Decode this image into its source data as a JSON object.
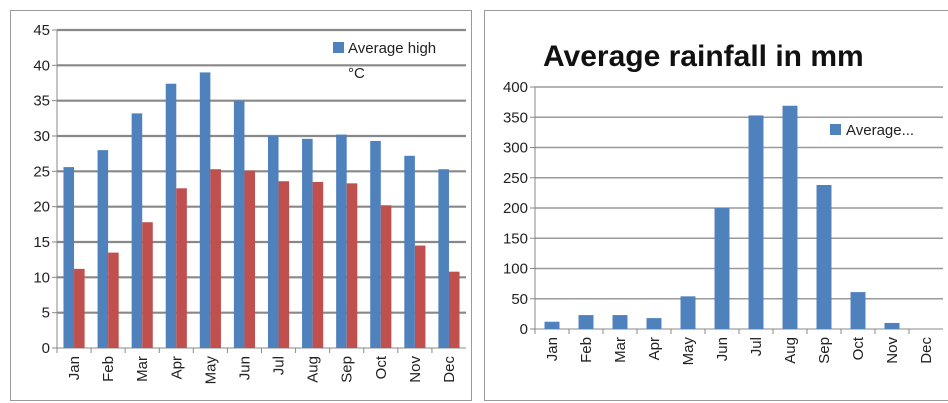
{
  "chart_data": [
    {
      "type": "bar",
      "title": "",
      "xlabel": "",
      "ylabel": "",
      "categories": [
        "Jan",
        "Feb",
        "Mar",
        "Apr",
        "May",
        "Jun",
        "Jul",
        "Aug",
        "Sep",
        "Oct",
        "Nov",
        "Dec"
      ],
      "series": [
        {
          "name": "Average high °C",
          "color": "#4f81bd",
          "values": [
            25.6,
            28.0,
            33.2,
            37.4,
            39.0,
            35.0,
            30.0,
            29.6,
            30.2,
            29.3,
            27.2,
            25.3
          ]
        },
        {
          "color": "#c0504d",
          "values": [
            11.2,
            13.5,
            17.8,
            22.6,
            25.3,
            25.1,
            23.6,
            23.5,
            23.3,
            20.2,
            14.5,
            10.8
          ]
        }
      ],
      "ylim": [
        0,
        45
      ],
      "yticks": [
        0,
        5,
        10,
        15,
        20,
        25,
        30,
        35,
        40,
        45
      ],
      "grid": true,
      "legend": {
        "position": "top-right",
        "line1": "Average high",
        "line2": "°C"
      }
    },
    {
      "type": "bar",
      "title": "Average rainfall in mm",
      "xlabel": "",
      "ylabel": "",
      "categories": [
        "Jan",
        "Feb",
        "Mar",
        "Apr",
        "May",
        "Jun",
        "Jul",
        "Aug",
        "Sep",
        "Oct",
        "Nov",
        "Dec"
      ],
      "series": [
        {
          "name": "Average...",
          "color": "#4f81bd",
          "values": [
            12,
            23,
            23,
            18,
            54,
            200,
            353,
            369,
            238,
            61,
            10,
            0
          ]
        }
      ],
      "ylim": [
        0,
        400
      ],
      "yticks": [
        0,
        50,
        100,
        150,
        200,
        250,
        300,
        350,
        400
      ],
      "grid": true,
      "legend": {
        "position": "right"
      }
    }
  ]
}
